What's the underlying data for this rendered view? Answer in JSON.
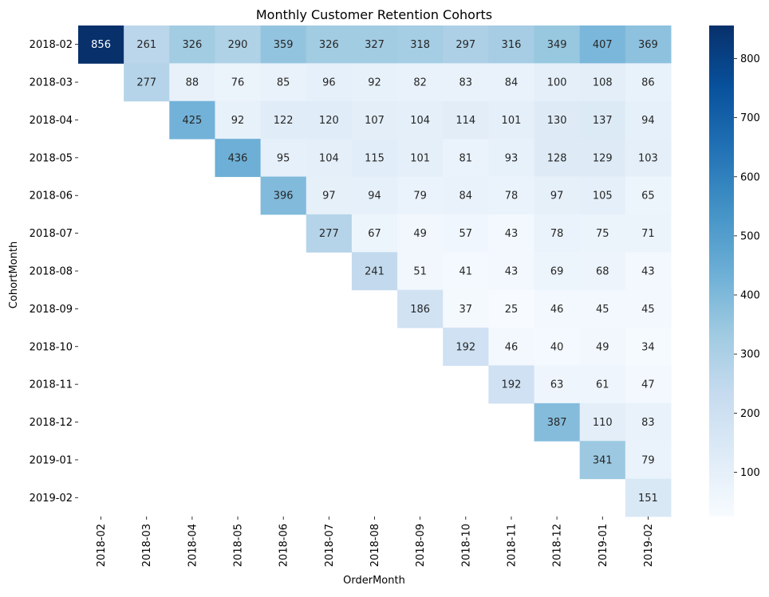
{
  "chart_data": {
    "type": "heatmap",
    "title": "Monthly Customer Retention Cohorts",
    "xlabel": "OrderMonth",
    "ylabel": "CohortMonth",
    "x_categories": [
      "2018-02",
      "2018-03",
      "2018-04",
      "2018-05",
      "2018-06",
      "2018-07",
      "2018-08",
      "2018-09",
      "2018-10",
      "2018-11",
      "2018-12",
      "2019-01",
      "2019-02"
    ],
    "y_categories": [
      "2018-02",
      "2018-03",
      "2018-04",
      "2018-05",
      "2018-06",
      "2018-07",
      "2018-08",
      "2018-09",
      "2018-10",
      "2018-11",
      "2018-12",
      "2019-01",
      "2019-02"
    ],
    "values": [
      [
        856,
        261,
        326,
        290,
        359,
        326,
        327,
        318,
        297,
        316,
        349,
        407,
        369
      ],
      [
        null,
        277,
        88,
        76,
        85,
        96,
        92,
        82,
        83,
        84,
        100,
        108,
        86
      ],
      [
        null,
        null,
        425,
        92,
        122,
        120,
        107,
        104,
        114,
        101,
        130,
        137,
        94
      ],
      [
        null,
        null,
        null,
        436,
        95,
        104,
        115,
        101,
        81,
        93,
        128,
        129,
        103
      ],
      [
        null,
        null,
        null,
        null,
        396,
        97,
        94,
        79,
        84,
        78,
        97,
        105,
        65
      ],
      [
        null,
        null,
        null,
        null,
        null,
        277,
        67,
        49,
        57,
        43,
        78,
        75,
        71
      ],
      [
        null,
        null,
        null,
        null,
        null,
        null,
        241,
        51,
        41,
        43,
        69,
        68,
        43
      ],
      [
        null,
        null,
        null,
        null,
        null,
        null,
        null,
        186,
        37,
        25,
        46,
        45,
        45
      ],
      [
        null,
        null,
        null,
        null,
        null,
        null,
        null,
        null,
        192,
        46,
        40,
        49,
        34
      ],
      [
        null,
        null,
        null,
        null,
        null,
        null,
        null,
        null,
        null,
        192,
        63,
        61,
        47
      ],
      [
        null,
        null,
        null,
        null,
        null,
        null,
        null,
        null,
        null,
        null,
        387,
        110,
        83
      ],
      [
        null,
        null,
        null,
        null,
        null,
        null,
        null,
        null,
        null,
        null,
        null,
        341,
        79
      ],
      [
        null,
        null,
        null,
        null,
        null,
        null,
        null,
        null,
        null,
        null,
        null,
        null,
        151
      ]
    ],
    "colormap": "Blues",
    "vmin": 25,
    "vmax": 856,
    "colorbar_ticks": [
      100,
      200,
      300,
      400,
      500,
      600,
      700,
      800
    ]
  }
}
